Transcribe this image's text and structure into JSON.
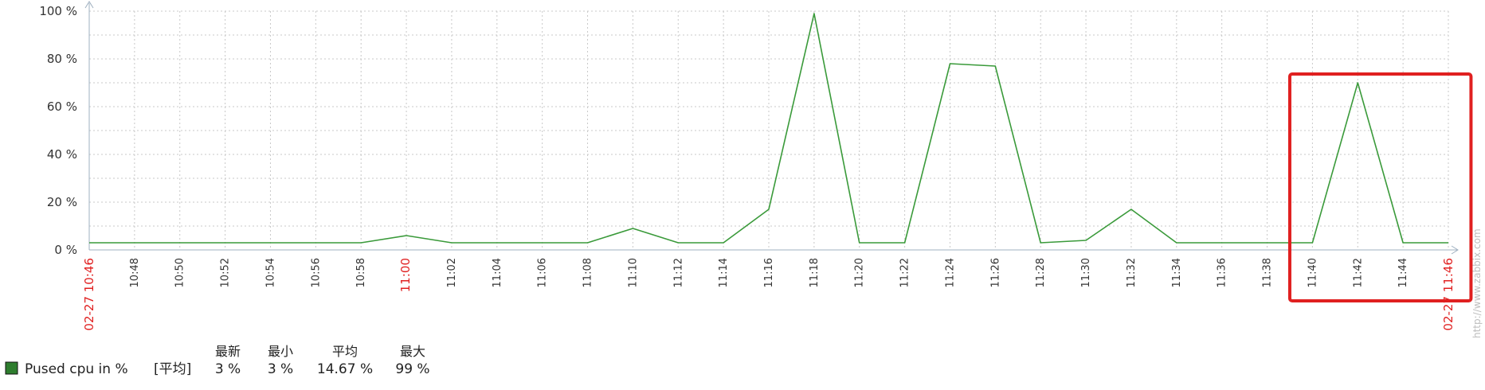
{
  "chart_data": {
    "type": "line",
    "title": "",
    "xlabel": "",
    "ylabel": "",
    "ylim": [
      0,
      100
    ],
    "y_ticks": [
      "0 %",
      "20 %",
      "40 %",
      "60 %",
      "80 %",
      "100 %"
    ],
    "x_ticks": [
      "10:48",
      "10:50",
      "10:52",
      "10:54",
      "10:56",
      "10:58",
      "11:00",
      "11:02",
      "11:04",
      "11:06",
      "11:08",
      "11:10",
      "11:12",
      "11:14",
      "11:16",
      "11:18",
      "11:20",
      "11:22",
      "11:24",
      "11:26",
      "11:28",
      "11:30",
      "11:32",
      "11:34",
      "11:36",
      "11:38",
      "11:40",
      "11:42",
      "11:44"
    ],
    "x_ticks_highlight": [
      "11:00"
    ],
    "range_start_label": "02-27 10:46",
    "range_end_label": "02-27 11:46",
    "grid": true,
    "series": [
      {
        "name": "Pused cpu in %",
        "color": "#3a9a3a",
        "x": [
          "10:46",
          "10:48",
          "10:50",
          "10:52",
          "10:54",
          "10:56",
          "10:58",
          "11:00",
          "11:02",
          "11:04",
          "11:06",
          "11:08",
          "11:10",
          "11:12",
          "11:14",
          "11:16",
          "11:18",
          "11:20",
          "11:22",
          "11:24",
          "11:26",
          "11:28",
          "11:30",
          "11:32",
          "11:34",
          "11:36",
          "11:38",
          "11:40",
          "11:42",
          "11:44",
          "11:46"
        ],
        "values": [
          3,
          3,
          3,
          3,
          3,
          3,
          3,
          6,
          3,
          3,
          3,
          3,
          9,
          3,
          3,
          17,
          99,
          3,
          3,
          78,
          77,
          3,
          4,
          17,
          3,
          3,
          3,
          3,
          70,
          3,
          3
        ]
      }
    ],
    "highlight_box": {
      "from": "11:39",
      "to": "11:47",
      "color": "#e02020"
    }
  },
  "legend": {
    "series_name": "Pused cpu in %",
    "agg": "[平均]",
    "swatch_color": "#2e7d2e",
    "headers": [
      "最新",
      "最小",
      "平均",
      "最大"
    ],
    "values": [
      "3 %",
      "3 %",
      "14.67 %",
      "99 %"
    ]
  },
  "watermark": "http://www.zabbix.com"
}
